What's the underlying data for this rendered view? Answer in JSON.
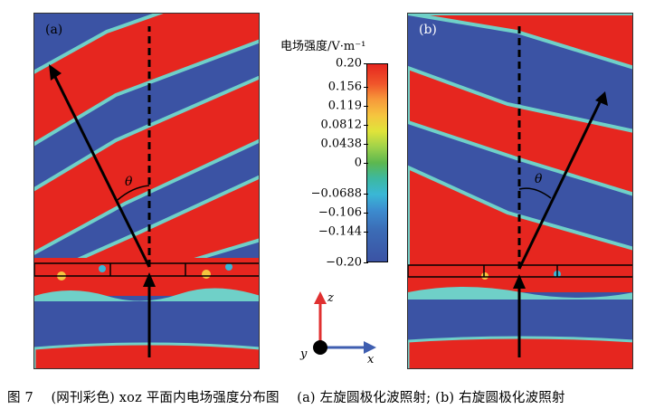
{
  "figure": {
    "panel_a": {
      "label": "(a)",
      "angle_symbol": "θ"
    },
    "panel_b": {
      "label": "(b)",
      "angle_symbol": "θ"
    },
    "colorbar": {
      "title": "电场强度/V·m⁻¹",
      "ticks": [
        "0.20",
        "0.156",
        "0.119",
        "0.0812",
        "0.0438",
        "0",
        "−0.0688",
        "−0.106",
        "−0.144",
        "−0.20"
      ],
      "colors": {
        "max": "#e6261f",
        "mid": "#5cb74f",
        "min": "#3b53a4"
      }
    },
    "axes": {
      "z": "z",
      "x": "x",
      "y": "y",
      "colors": {
        "z": "#e03030",
        "x": "#3f5eb0",
        "y": "#000000"
      }
    },
    "caption": "图 7 　(网刊彩色) xoz 平面内电场强度分布图 　(a) 左旋圆极化波照射; (b) 右旋圆极化波照射"
  }
}
